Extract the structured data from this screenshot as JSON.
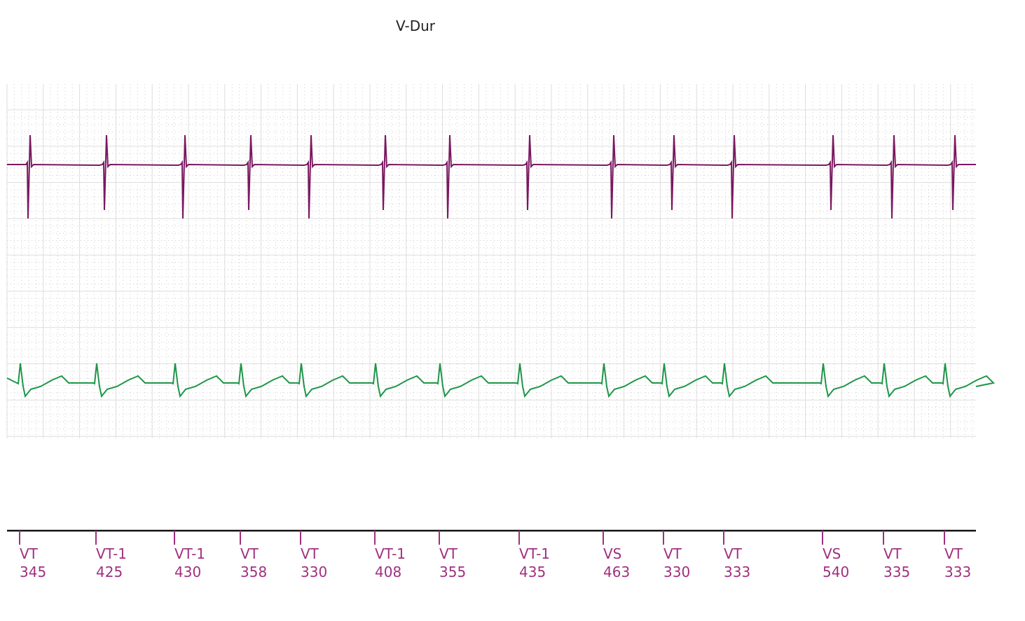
{
  "header": {
    "title": "V-Dur"
  },
  "markers": [
    {
      "label": "VT",
      "interval": 345
    },
    {
      "label": "VT-1",
      "interval": 425
    },
    {
      "label": "VT-1",
      "interval": 430
    },
    {
      "label": "VT",
      "interval": 358
    },
    {
      "label": "VT",
      "interval": 330
    },
    {
      "label": "VT-1",
      "interval": 408
    },
    {
      "label": "VT",
      "interval": 355
    },
    {
      "label": "VT-1",
      "interval": 435
    },
    {
      "label": "VS",
      "interval": 463
    },
    {
      "label": "VT",
      "interval": 330
    },
    {
      "label": "VT",
      "interval": 333
    },
    {
      "label": "VS",
      "interval": 540
    },
    {
      "label": "VT",
      "interval": 335
    },
    {
      "label": "VT",
      "interval": 333
    }
  ]
}
